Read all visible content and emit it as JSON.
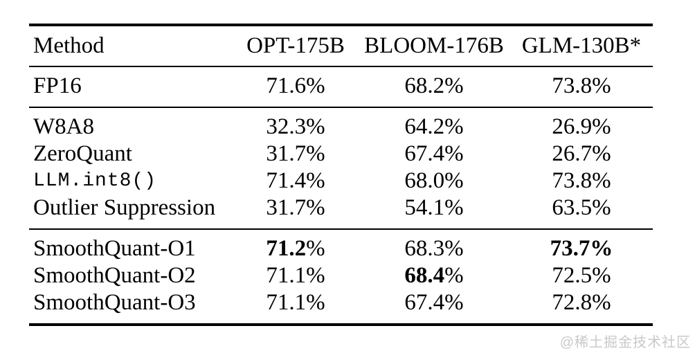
{
  "table": {
    "columns": [
      "Method",
      "OPT-175B",
      "BLOOM-176B",
      "GLM-130B*"
    ],
    "sections": [
      {
        "rows": [
          {
            "method": "FP16",
            "mono": false,
            "cells": [
              {
                "num": "71.6",
                "suffix": "%",
                "bold_num": false,
                "bold_suffix": false
              },
              {
                "num": "68.2",
                "suffix": "%",
                "bold_num": false,
                "bold_suffix": false
              },
              {
                "num": "73.8",
                "suffix": "%",
                "bold_num": false,
                "bold_suffix": false
              }
            ]
          }
        ]
      },
      {
        "rows": [
          {
            "method": "W8A8",
            "mono": false,
            "cells": [
              {
                "num": "32.3",
                "suffix": "%",
                "bold_num": false,
                "bold_suffix": false
              },
              {
                "num": "64.2",
                "suffix": "%",
                "bold_num": false,
                "bold_suffix": false
              },
              {
                "num": "26.9",
                "suffix": "%",
                "bold_num": false,
                "bold_suffix": false
              }
            ]
          },
          {
            "method": "ZeroQuant",
            "mono": false,
            "cells": [
              {
                "num": "31.7",
                "suffix": "%",
                "bold_num": false,
                "bold_suffix": false
              },
              {
                "num": "67.4",
                "suffix": "%",
                "bold_num": false,
                "bold_suffix": false
              },
              {
                "num": "26.7",
                "suffix": "%",
                "bold_num": false,
                "bold_suffix": false
              }
            ]
          },
          {
            "method": "LLM.int8()",
            "mono": true,
            "cells": [
              {
                "num": "71.4",
                "suffix": "%",
                "bold_num": false,
                "bold_suffix": false
              },
              {
                "num": "68.0",
                "suffix": "%",
                "bold_num": false,
                "bold_suffix": false
              },
              {
                "num": "73.8",
                "suffix": "%",
                "bold_num": false,
                "bold_suffix": false
              }
            ]
          },
          {
            "method": "Outlier Suppression",
            "mono": false,
            "cells": [
              {
                "num": "31.7",
                "suffix": "%",
                "bold_num": false,
                "bold_suffix": false
              },
              {
                "num": "54.1",
                "suffix": "%",
                "bold_num": false,
                "bold_suffix": false
              },
              {
                "num": "63.5",
                "suffix": "%",
                "bold_num": false,
                "bold_suffix": false
              }
            ]
          }
        ]
      },
      {
        "rows": [
          {
            "method": "SmoothQuant-O1",
            "mono": false,
            "cells": [
              {
                "num": "71.2",
                "suffix": "%",
                "bold_num": true,
                "bold_suffix": false
              },
              {
                "num": "68.3",
                "suffix": "%",
                "bold_num": false,
                "bold_suffix": false
              },
              {
                "num": "73.7",
                "suffix": "%",
                "bold_num": true,
                "bold_suffix": true
              }
            ]
          },
          {
            "method": "SmoothQuant-O2",
            "mono": false,
            "cells": [
              {
                "num": "71.1",
                "suffix": "%",
                "bold_num": false,
                "bold_suffix": false
              },
              {
                "num": "68.4",
                "suffix": "%",
                "bold_num": true,
                "bold_suffix": false
              },
              {
                "num": "72.5",
                "suffix": "%",
                "bold_num": false,
                "bold_suffix": false
              }
            ]
          },
          {
            "method": "SmoothQuant-O3",
            "mono": false,
            "cells": [
              {
                "num": "71.1",
                "suffix": "%",
                "bold_num": false,
                "bold_suffix": false
              },
              {
                "num": "67.4",
                "suffix": "%",
                "bold_num": false,
                "bold_suffix": false
              },
              {
                "num": "72.8",
                "suffix": "%",
                "bold_num": false,
                "bold_suffix": false
              }
            ]
          }
        ]
      }
    ]
  },
  "chart_data": {
    "type": "table",
    "title": "",
    "columns": [
      "Method",
      "OPT-175B",
      "BLOOM-176B",
      "GLM-130B*"
    ],
    "rows": [
      [
        "FP16",
        "71.6%",
        "68.2%",
        "73.8%"
      ],
      [
        "W8A8",
        "32.3%",
        "64.2%",
        "26.9%"
      ],
      [
        "ZeroQuant",
        "31.7%",
        "67.4%",
        "26.7%"
      ],
      [
        "LLM.int8()",
        "71.4%",
        "68.0%",
        "73.8%"
      ],
      [
        "Outlier Suppression",
        "31.7%",
        "54.1%",
        "63.5%"
      ],
      [
        "SmoothQuant-O1",
        "71.2%",
        "68.3%",
        "73.7%"
      ],
      [
        "SmoothQuant-O2",
        "71.1%",
        "68.4%",
        "72.5%"
      ],
      [
        "SmoothQuant-O3",
        "71.1%",
        "67.4%",
        "72.8%"
      ]
    ]
  },
  "watermark": "@稀土掘金技术社区",
  "colors": {
    "text": "#000000",
    "rule": "#000000",
    "background": "#ffffff",
    "watermark": "#c9c9c9"
  }
}
